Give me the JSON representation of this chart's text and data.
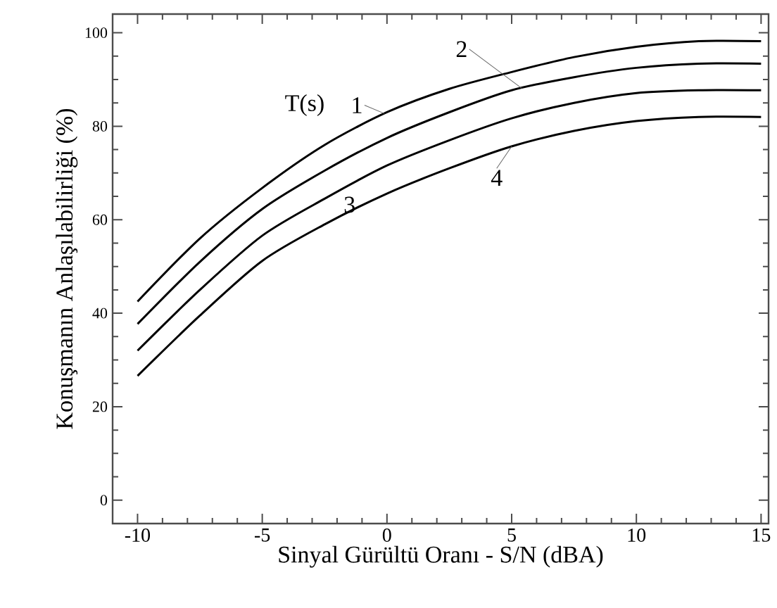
{
  "chart_data": {
    "type": "line",
    "xlabel": "Sinyal Gürültü Oranı - S/N (dBA)",
    "ylabel": "Konuşmanın Anlaşılabilirliği (%)",
    "annotations": [
      "T(s)"
    ],
    "x": [
      -10,
      -7.5,
      -5,
      -2.5,
      0,
      2.5,
      5,
      7.5,
      10,
      12.5,
      15
    ],
    "series": [
      {
        "name": "1",
        "color": "#000000",
        "values": [
          42.5,
          56,
          66.8,
          76,
          83,
          88,
          91.6,
          94.8,
          97,
          98.2,
          98.2
        ]
      },
      {
        "name": "2",
        "color": "#000000",
        "values": [
          37.7,
          51,
          62.3,
          70.5,
          77.5,
          83,
          87.7,
          90.5,
          92.5,
          93.4,
          93.4
        ]
      },
      {
        "name": "3",
        "color": "#000000",
        "values": [
          32,
          45,
          56.6,
          64.5,
          71.6,
          77,
          81.7,
          85,
          87.1,
          87.7,
          87.7
        ]
      },
      {
        "name": "4",
        "color": "#000000",
        "values": [
          26.6,
          39.5,
          51.2,
          59,
          65.6,
          71,
          75.7,
          79,
          81.1,
          82,
          82
        ]
      }
    ],
    "xlim": [
      -11,
      15.3
    ],
    "ylim": [
      -5,
      104
    ],
    "xticks": [
      -10,
      -5,
      0,
      5,
      10,
      15
    ],
    "yticks": [
      0,
      20,
      40,
      60,
      80,
      100
    ],
    "grid": false,
    "marker": "none",
    "line_style": "solid"
  }
}
